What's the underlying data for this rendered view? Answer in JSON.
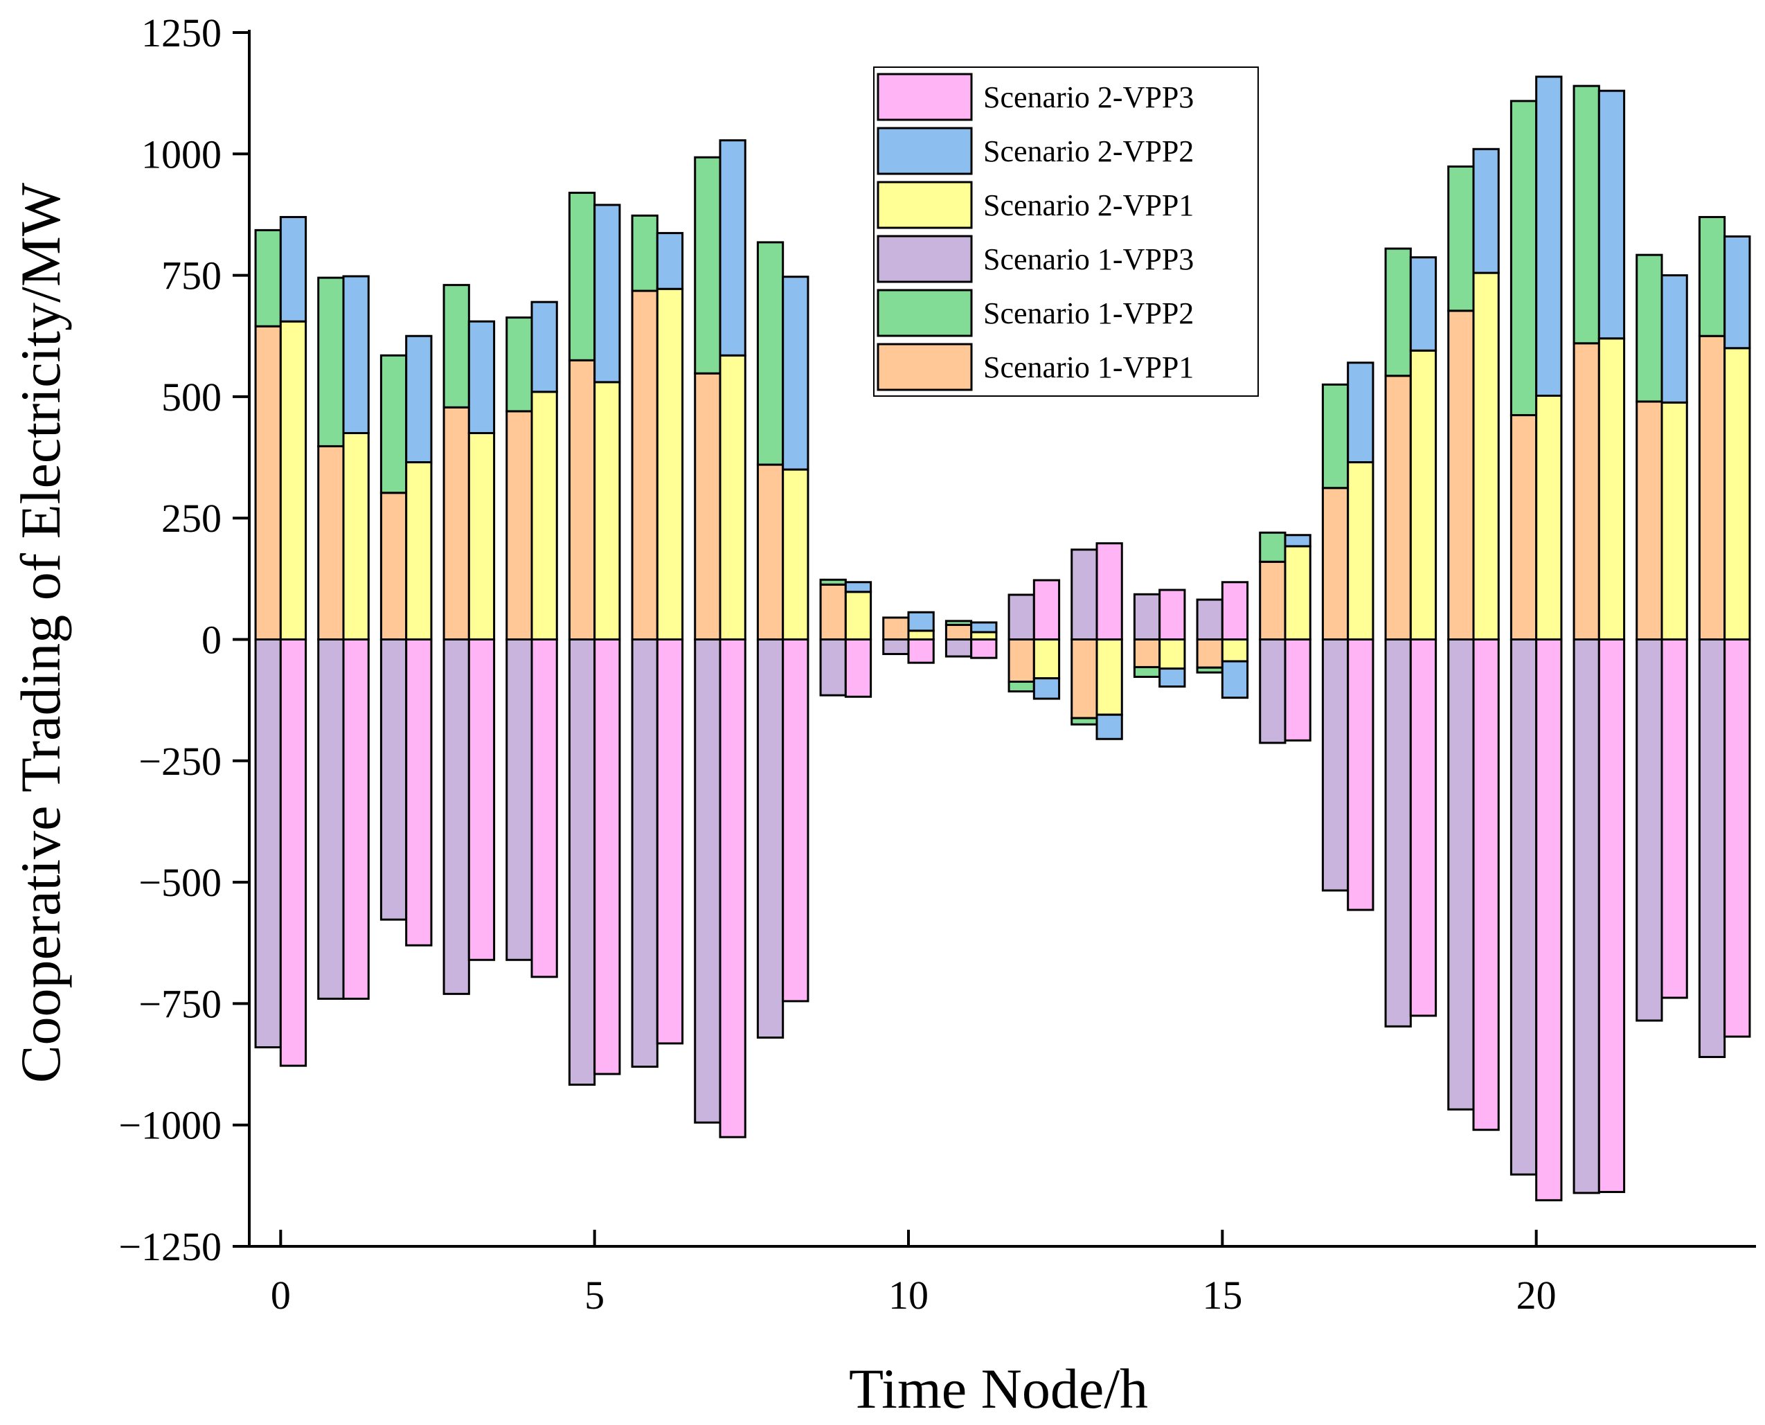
{
  "chart_data": {
    "type": "bar",
    "subtype": "stacked-grouped",
    "title": "",
    "xlabel": "Time Node/h",
    "ylabel": "Cooperative Trading of Electricity/MW",
    "xlim": [
      -0.5,
      23.5
    ],
    "ylim": [
      -1250,
      1250
    ],
    "x_ticks": [
      0,
      5,
      10,
      15,
      20
    ],
    "x_tick_labels": [
      "0",
      "5",
      "10",
      "15",
      "20"
    ],
    "y_ticks": [
      -1250,
      -1000,
      -750,
      -500,
      -250,
      0,
      250,
      500,
      750,
      1000,
      1250
    ],
    "y_tick_labels": [
      "−1250",
      "−1000",
      "−750",
      "−500",
      "−250",
      "0",
      "250",
      "500",
      "750",
      "1000",
      "1250"
    ],
    "legend_position": "top-center",
    "legend_order": [
      "Scenario 2-VPP3",
      "Scenario 2-VPP2",
      "Scenario 2-VPP1",
      "Scenario 1-VPP3",
      "Scenario 1-VPP2",
      "Scenario 1-VPP1"
    ],
    "hours": [
      0,
      1,
      2,
      3,
      4,
      5,
      6,
      7,
      8,
      9,
      10,
      11,
      12,
      13,
      14,
      15,
      16,
      17,
      18,
      19,
      20,
      21,
      22,
      23
    ],
    "series": [
      {
        "name": "Scenario 1-VPP1",
        "scenario": 1,
        "color": "#FFC896",
        "values": [
          645,
          398,
          302,
          478,
          470,
          575,
          718,
          548,
          360,
          113,
          45,
          30,
          -87,
          -162,
          -57,
          -58,
          160,
          312,
          543,
          677,
          462,
          610,
          490,
          625
        ]
      },
      {
        "name": "Scenario 1-VPP2",
        "scenario": 1,
        "color": "#82DC96",
        "values": [
          198,
          347,
          283,
          252,
          193,
          345,
          155,
          445,
          458,
          10,
          0,
          8,
          -20,
          -13,
          -20,
          -10,
          60,
          213,
          262,
          297,
          647,
          530,
          302,
          245
        ]
      },
      {
        "name": "Scenario 1-VPP3",
        "scenario": 1,
        "color": "#C8B4DC",
        "values": [
          -840,
          -740,
          -577,
          -730,
          -660,
          -917,
          -880,
          -995,
          -820,
          -115,
          -30,
          -35,
          92,
          185,
          93,
          82,
          -213,
          -517,
          -797,
          -968,
          -1102,
          -1140,
          -785,
          -860
        ]
      },
      {
        "name": "Scenario 2-VPP1",
        "scenario": 2,
        "color": "#FFFF96",
        "values": [
          655,
          425,
          365,
          425,
          510,
          530,
          722,
          585,
          350,
          98,
          18,
          15,
          -80,
          -155,
          -60,
          -45,
          192,
          365,
          595,
          755,
          502,
          620,
          488,
          600
        ]
      },
      {
        "name": "Scenario 2-VPP2",
        "scenario": 2,
        "color": "#8CBEF0",
        "values": [
          215,
          323,
          260,
          230,
          185,
          365,
          115,
          443,
          397,
          20,
          38,
          20,
          -42,
          -50,
          -37,
          -75,
          23,
          205,
          192,
          255,
          657,
          510,
          262,
          230
        ]
      },
      {
        "name": "Scenario 2-VPP3",
        "scenario": 2,
        "color": "#FFB4F5",
        "values": [
          -878,
          -740,
          -630,
          -660,
          -695,
          -895,
          -832,
          -1025,
          -745,
          -118,
          -48,
          -38,
          122,
          198,
          102,
          118,
          -208,
          -557,
          -775,
          -1010,
          -1155,
          -1138,
          -738,
          -818
        ]
      }
    ]
  }
}
